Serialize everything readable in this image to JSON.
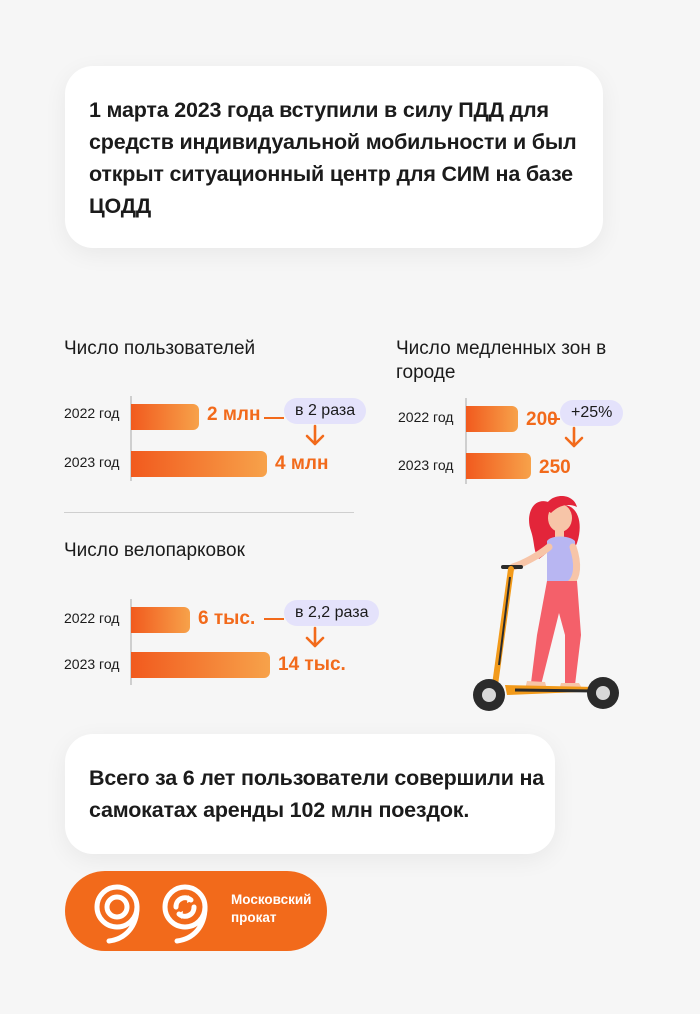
{
  "intro": {
    "text": "1 марта 2023 года вступили в силу ПДД для средств индивидуальной мобильности и был открыт ситуационный центр для СИМ на базе ЦОДД"
  },
  "summary": {
    "text": "Всего за 6 лет пользователи совершили на самокатах аренды 102 млн поездок."
  },
  "logo": {
    "text": "Московский прокат"
  },
  "colors": {
    "accent": "#f26a1b",
    "bar_start": "#f15a1e",
    "bar_end": "#f7a24a",
    "pill_bg": "#e4e2fb"
  },
  "chart_data": [
    {
      "type": "bar",
      "title": "Число пользователей",
      "categories": [
        "2022 год",
        "2023 год"
      ],
      "values": [
        2,
        4
      ],
      "value_labels": [
        "2 млн",
        "4 млн"
      ],
      "unit": "млн",
      "change_label": "в 2 раза"
    },
    {
      "type": "bar",
      "title": "Число медленных зон в городе",
      "categories": [
        "2022 год",
        "2023 год"
      ],
      "values": [
        200,
        250
      ],
      "value_labels": [
        "200",
        "250"
      ],
      "change_label": "+25%"
    },
    {
      "type": "bar",
      "title": "Число велопарковок",
      "categories": [
        "2022 год",
        "2023 год"
      ],
      "values": [
        6,
        14
      ],
      "value_labels": [
        "6 тыс.",
        "14 тыс."
      ],
      "unit": "тыс.",
      "change_label": "в 2,2 раза"
    }
  ]
}
